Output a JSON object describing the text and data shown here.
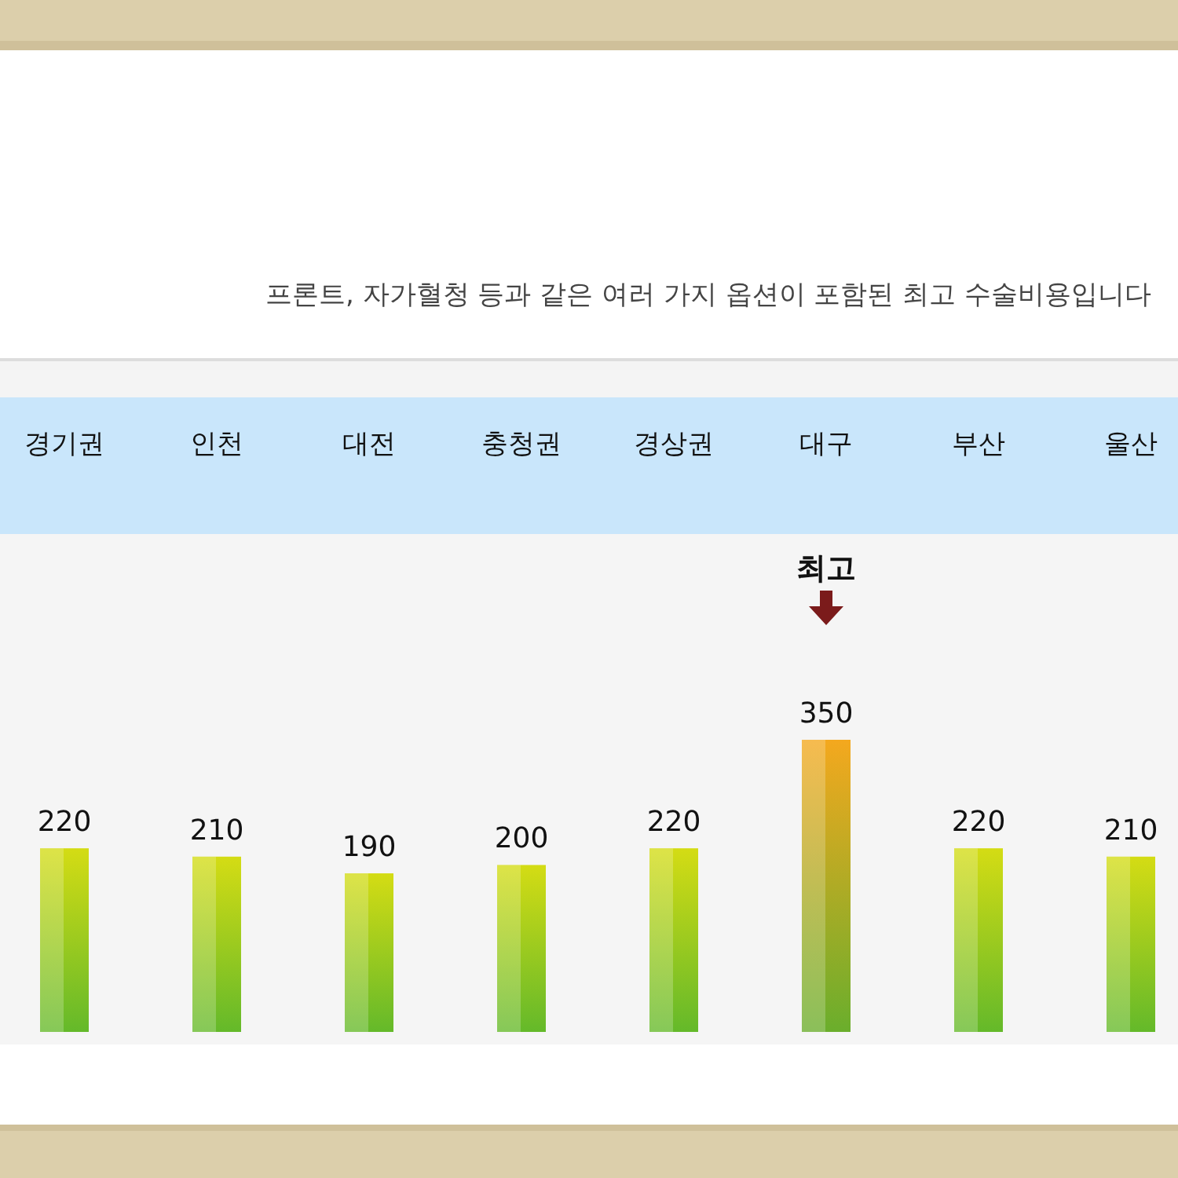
{
  "chart_data": {
    "type": "bar",
    "title": "프론트, 자가혈청 등과 같은 여러 가지 옵션이 포함된 최고 수술비용입니다",
    "categories": [
      "경기권",
      "인천",
      "대전",
      "충청권",
      "경상권",
      "대구",
      "부산",
      "울산"
    ],
    "values": [
      220,
      210,
      190,
      200,
      220,
      350,
      220,
      210
    ],
    "colors": [
      "#d4dc14",
      "#d4dc14",
      "#d4dc14",
      "#d4dc14",
      "#d4dc14",
      "#f4a81e",
      "#d4dc14",
      "#d4dc14"
    ],
    "data_labels": true,
    "annotations": [
      "최고"
    ]
  }
}
